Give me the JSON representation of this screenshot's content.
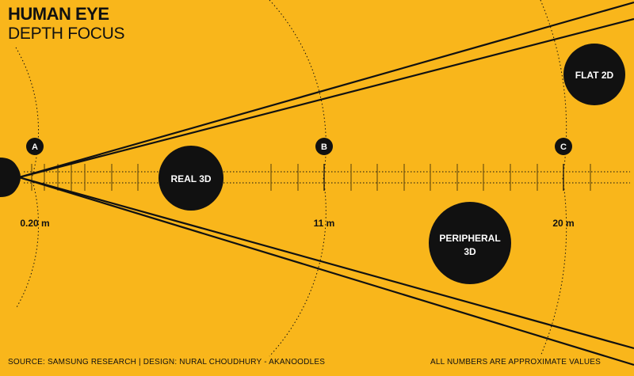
{
  "title": "HUMAN EYE",
  "subtitle": "DEPTH FOCUS",
  "markers": [
    {
      "label": "A",
      "distance": "0.20 m"
    },
    {
      "label": "B",
      "distance": "11 m"
    },
    {
      "label": "C",
      "distance": "20 m"
    }
  ],
  "zones": {
    "real": "REAL 3D",
    "peripheral_line1": "PERIPHERAL",
    "peripheral_line2": "3D",
    "flat": "FLAT 2D"
  },
  "footer": {
    "source": "SOURCE: SAMSUNG RESEARCH | DESIGN: NURAL CHOUDHURY - AKANOODLES",
    "note": "ALL NUMBERS ARE APPROXIMATE VALUES"
  },
  "colors": {
    "background": "#f9b61b",
    "ink": "#111111",
    "label_text": "#ffffff"
  }
}
